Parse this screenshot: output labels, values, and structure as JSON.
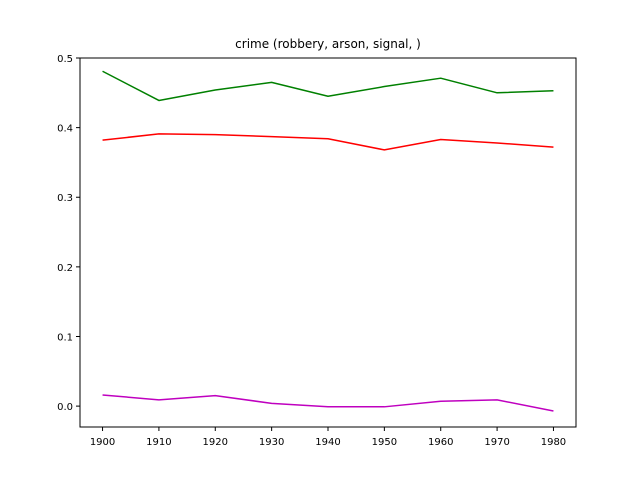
{
  "chart_data": {
    "type": "line",
    "title": "crime (robbery, arson, signal, )",
    "xlabel": "",
    "ylabel": "",
    "x": [
      1900,
      1910,
      1920,
      1930,
      1940,
      1950,
      1960,
      1970,
      1980
    ],
    "xlim": [
      1896,
      1984
    ],
    "ylim": [
      -0.03,
      0.5
    ],
    "x_ticks": [
      "1900",
      "1910",
      "1920",
      "1930",
      "1940",
      "1950",
      "1960",
      "1970",
      "1980"
    ],
    "y_ticks": [
      "0.0",
      "0.1",
      "0.2",
      "0.3",
      "0.4",
      "0.5"
    ],
    "grid": false,
    "series": [
      {
        "color": "#008000",
        "values": [
          0.481,
          0.439,
          0.454,
          0.465,
          0.445,
          0.459,
          0.471,
          0.45,
          0.453
        ]
      },
      {
        "color": "#ff0000",
        "values": [
          0.382,
          0.391,
          0.39,
          0.387,
          0.384,
          0.368,
          0.383,
          0.378,
          0.372
        ]
      },
      {
        "color": "#bf00bf",
        "values": [
          0.016,
          0.009,
          0.015,
          0.004,
          -0.001,
          -0.001,
          0.007,
          0.009,
          -0.007
        ]
      }
    ]
  }
}
